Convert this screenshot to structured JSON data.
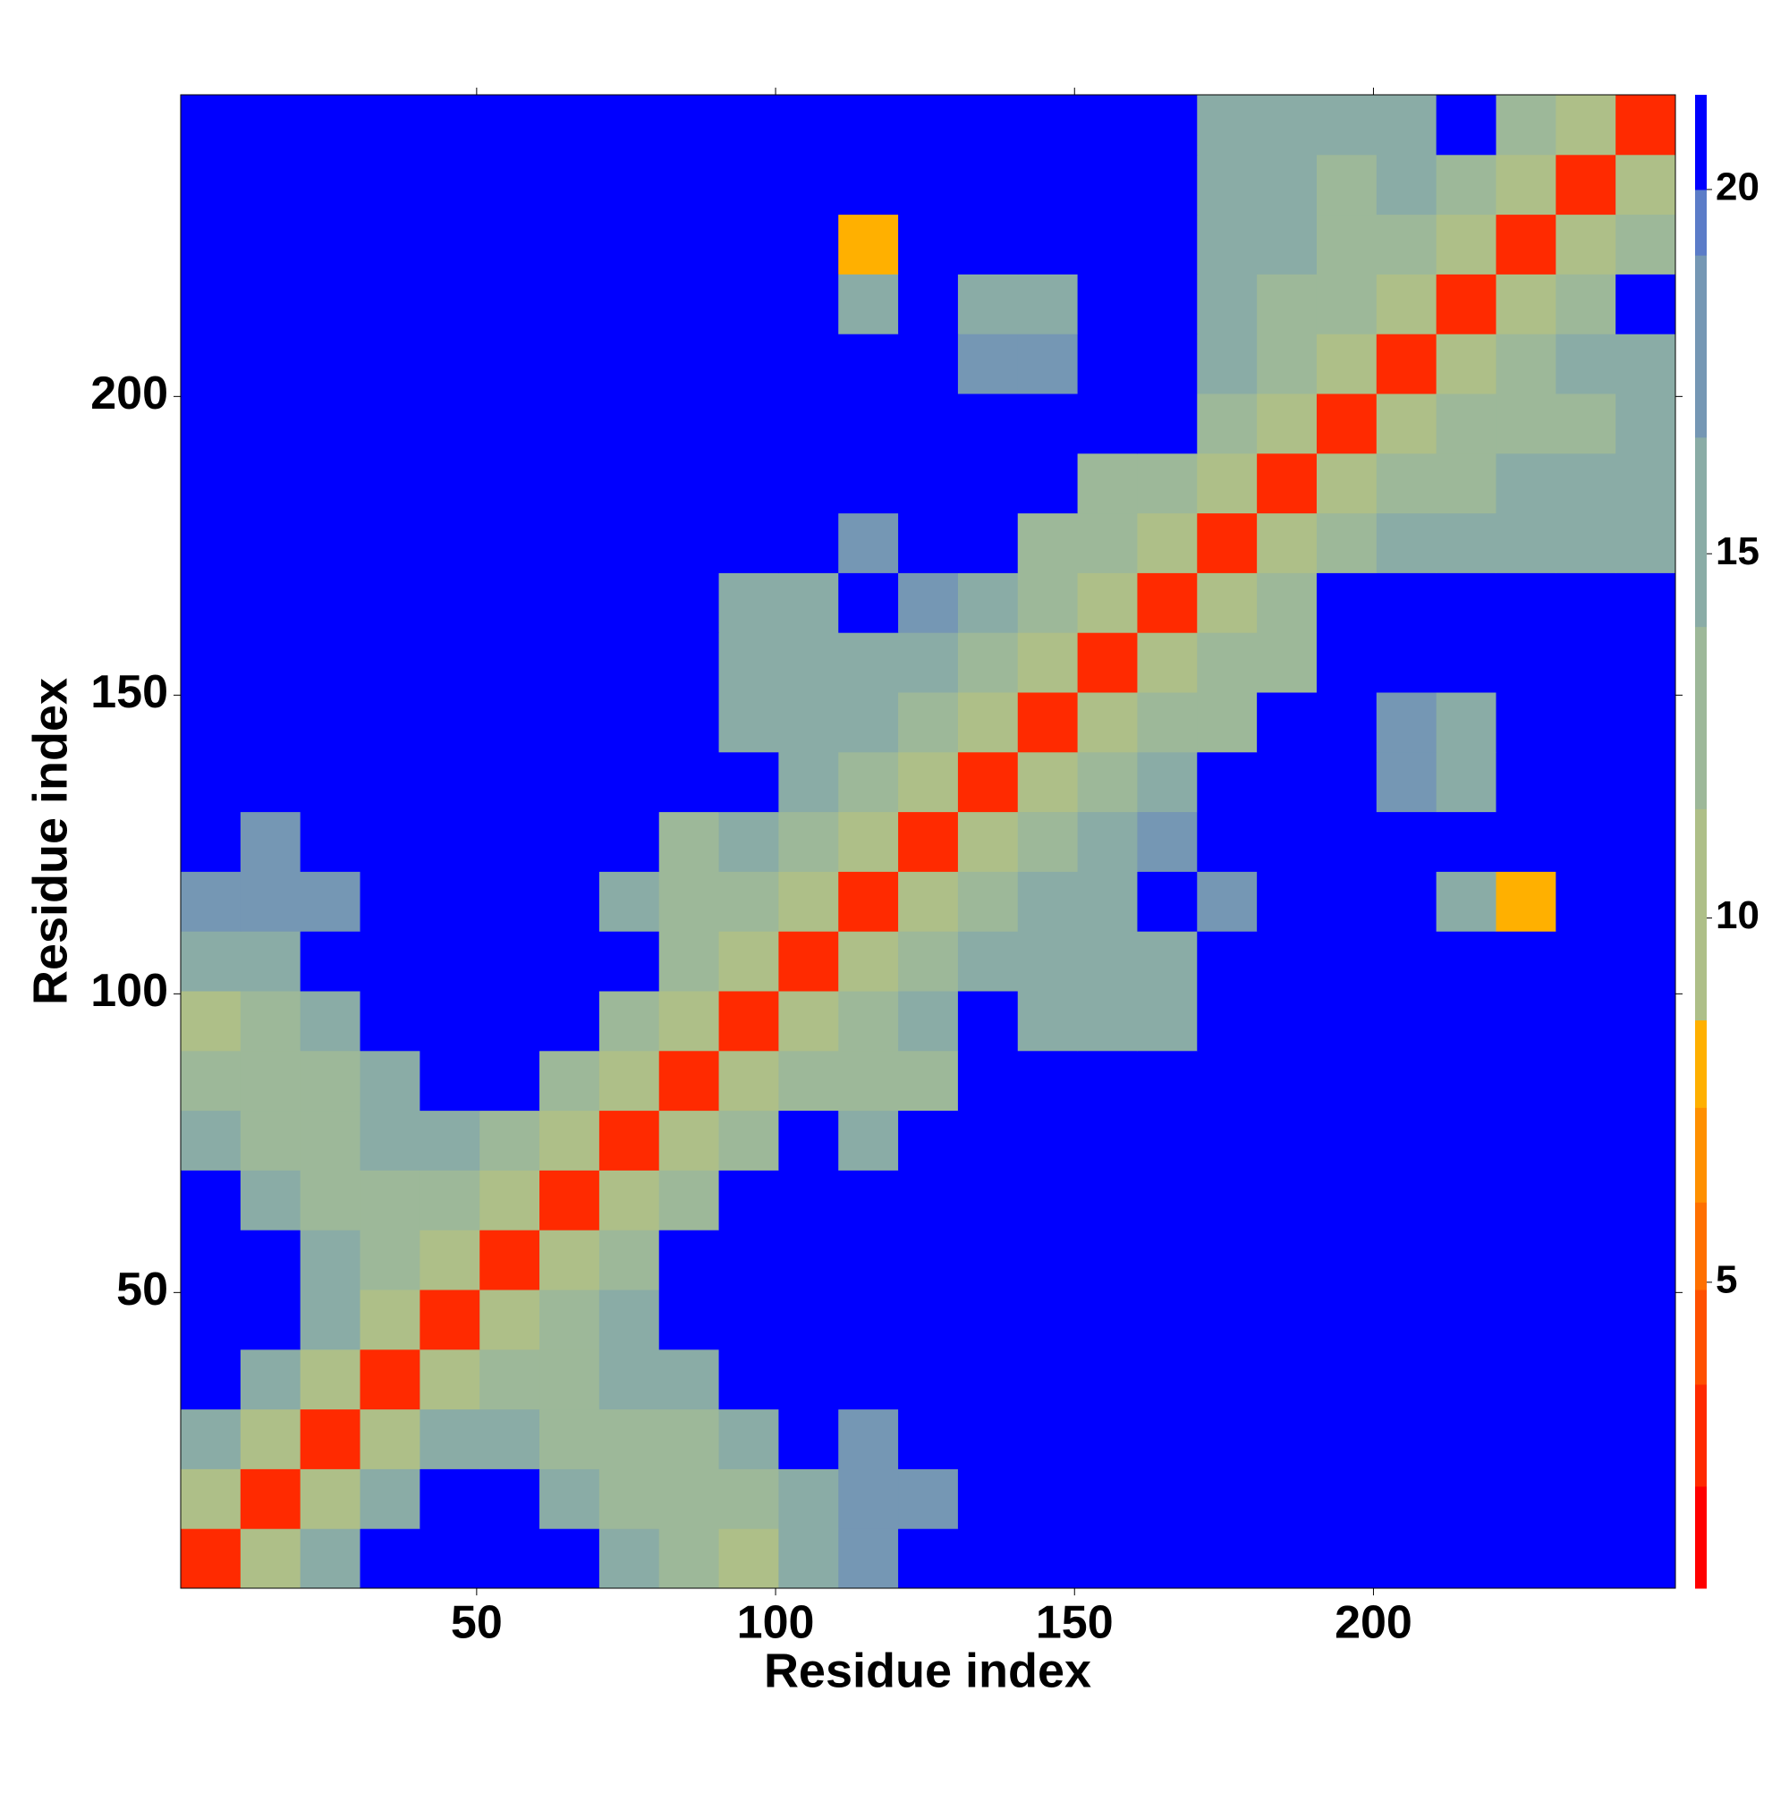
{
  "chart_data": {
    "type": "heatmap",
    "xlabel": "Residue index",
    "ylabel": "Residue index",
    "bins": [
      0.5,
      10.5,
      20.5,
      30.5,
      40.5,
      50.5,
      60.5,
      70.5,
      80.5,
      90.5,
      100.5,
      110.5,
      120.5,
      130.5,
      140.5,
      150.5,
      160.5,
      170.5,
      180.5,
      190.5,
      200.5,
      210.5,
      220.5,
      230.5,
      240.5,
      250.5
    ],
    "xlim": [
      0.5,
      250.5
    ],
    "ylim": [
      0.5,
      250.5
    ],
    "xticks": [
      50,
      100,
      150,
      200
    ],
    "yticks": [
      50,
      100,
      150,
      200
    ],
    "values": [
      [
        3,
        11,
        14,
        21,
        21,
        21,
        21,
        16,
        12,
        11,
        15,
        17,
        21,
        21,
        21,
        21,
        21,
        21,
        21,
        21,
        21,
        21,
        21,
        21,
        21
      ],
      [
        11,
        3,
        11,
        14,
        21,
        21,
        16,
        13,
        12,
        12,
        16,
        17,
        18,
        21,
        21,
        21,
        21,
        21,
        21,
        21,
        21,
        21,
        21,
        21,
        21
      ],
      [
        14,
        11,
        3,
        11,
        15,
        14,
        12,
        12,
        12,
        14,
        21,
        18,
        21,
        21,
        21,
        21,
        21,
        21,
        21,
        21,
        21,
        21,
        21,
        21,
        21
      ],
      [
        21,
        14,
        11,
        3,
        11,
        13,
        12,
        15,
        15,
        21,
        21,
        21,
        21,
        21,
        21,
        21,
        21,
        21,
        21,
        21,
        21,
        21,
        21,
        21,
        21
      ],
      [
        21,
        21,
        15,
        11,
        3,
        11,
        13,
        15,
        21,
        21,
        21,
        21,
        21,
        21,
        21,
        21,
        21,
        21,
        21,
        21,
        21,
        21,
        21,
        21,
        21
      ],
      [
        21,
        21,
        14,
        13,
        11,
        3,
        11,
        12,
        21,
        21,
        21,
        21,
        21,
        21,
        21,
        21,
        21,
        21,
        21,
        21,
        21,
        21,
        21,
        21,
        21
      ],
      [
        21,
        16,
        12,
        12,
        13,
        11,
        3,
        11,
        13,
        21,
        21,
        21,
        21,
        21,
        21,
        21,
        21,
        21,
        21,
        21,
        21,
        21,
        21,
        21,
        21
      ],
      [
        16,
        13,
        12,
        15,
        15,
        12,
        11,
        3,
        11,
        13,
        21,
        14,
        21,
        21,
        21,
        21,
        21,
        21,
        21,
        21,
        21,
        21,
        21,
        21,
        21
      ],
      [
        12,
        12,
        12,
        15,
        21,
        21,
        13,
        11,
        3,
        11,
        13,
        13,
        13,
        21,
        21,
        21,
        21,
        21,
        21,
        21,
        21,
        21,
        21,
        21,
        21
      ],
      [
        11,
        12,
        14,
        21,
        21,
        21,
        21,
        13,
        11,
        3,
        11,
        12,
        14,
        21,
        16,
        16,
        15,
        21,
        21,
        21,
        21,
        21,
        21,
        21,
        21
      ],
      [
        15,
        16,
        21,
        21,
        21,
        21,
        21,
        21,
        13,
        11,
        3,
        11,
        12,
        14,
        16,
        16,
        16,
        21,
        21,
        21,
        21,
        21,
        21,
        21,
        21
      ],
      [
        17,
        17,
        18,
        21,
        21,
        21,
        21,
        14,
        13,
        12,
        11,
        3,
        11,
        13,
        15,
        16,
        21,
        17,
        21,
        21,
        21,
        16,
        8,
        21,
        21
      ],
      [
        21,
        18,
        21,
        21,
        21,
        21,
        21,
        21,
        13,
        14,
        12,
        11,
        3,
        11,
        13,
        16,
        17,
        21,
        21,
        21,
        21,
        21,
        21,
        21,
        21
      ],
      [
        21,
        21,
        21,
        21,
        21,
        21,
        21,
        21,
        21,
        21,
        14,
        13,
        11,
        3,
        11,
        13,
        15,
        21,
        21,
        21,
        17,
        16,
        21,
        21,
        21
      ],
      [
        21,
        21,
        21,
        21,
        21,
        21,
        21,
        21,
        21,
        16,
        16,
        15,
        13,
        11,
        3,
        11,
        12,
        13,
        21,
        21,
        17,
        16,
        21,
        21,
        21
      ],
      [
        21,
        21,
        21,
        21,
        21,
        21,
        21,
        21,
        21,
        16,
        16,
        16,
        16,
        13,
        11,
        3,
        11,
        12,
        13,
        21,
        21,
        21,
        21,
        21,
        21
      ],
      [
        21,
        21,
        21,
        21,
        21,
        21,
        21,
        21,
        21,
        15,
        16,
        21,
        17,
        15,
        12,
        11,
        3,
        11,
        12,
        21,
        21,
        21,
        21,
        21,
        21
      ],
      [
        21,
        21,
        21,
        21,
        21,
        21,
        21,
        21,
        21,
        21,
        21,
        17,
        21,
        21,
        13,
        12,
        11,
        3,
        11,
        13,
        15,
        14,
        15,
        14,
        16
      ],
      [
        21,
        21,
        21,
        21,
        21,
        21,
        21,
        21,
        21,
        21,
        21,
        21,
        21,
        21,
        21,
        13,
        12,
        11,
        3,
        11,
        13,
        13,
        14,
        14,
        15
      ],
      [
        21,
        21,
        21,
        21,
        21,
        21,
        21,
        21,
        21,
        21,
        21,
        21,
        21,
        21,
        21,
        21,
        21,
        13,
        11,
        3,
        11,
        12,
        13,
        13,
        14
      ],
      [
        21,
        21,
        21,
        21,
        21,
        21,
        21,
        21,
        21,
        21,
        21,
        21,
        21,
        17,
        17,
        21,
        21,
        15,
        13,
        11,
        3,
        11,
        13,
        14,
        14
      ],
      [
        21,
        21,
        21,
        21,
        21,
        21,
        21,
        21,
        21,
        21,
        21,
        16,
        21,
        16,
        16,
        21,
        21,
        14,
        13,
        12,
        11,
        3,
        11,
        13,
        21
      ],
      [
        21,
        21,
        21,
        21,
        21,
        21,
        21,
        21,
        21,
        21,
        21,
        8,
        21,
        21,
        21,
        21,
        21,
        15,
        14,
        13,
        13,
        11,
        3,
        11,
        13
      ],
      [
        21,
        21,
        21,
        21,
        21,
        21,
        21,
        21,
        21,
        21,
        21,
        21,
        21,
        21,
        21,
        21,
        21,
        14,
        14,
        13,
        14,
        13,
        11,
        3,
        11
      ],
      [
        21,
        21,
        21,
        21,
        21,
        21,
        21,
        21,
        21,
        21,
        21,
        21,
        21,
        21,
        21,
        21,
        21,
        16,
        15,
        14,
        14,
        21,
        13,
        11,
        3
      ]
    ],
    "colorbar": {
      "lim": [
        0.8,
        21.3
      ],
      "ticks": [
        5,
        10,
        15,
        20
      ],
      "levels": [
        0.8,
        2.2,
        3.6,
        4.9,
        6.1,
        7.4,
        8.6,
        11.5,
        14,
        16.6,
        19.1,
        20,
        21.3
      ],
      "colors": [
        "#ff0000",
        "#ff2a00",
        "#ff5000",
        "#ff7000",
        "#ff9000",
        "#ffb000",
        "#aebf88",
        "#9db899",
        "#8aaca6",
        "#7597b4",
        "#5b7cc8",
        "#0000ff"
      ]
    }
  }
}
